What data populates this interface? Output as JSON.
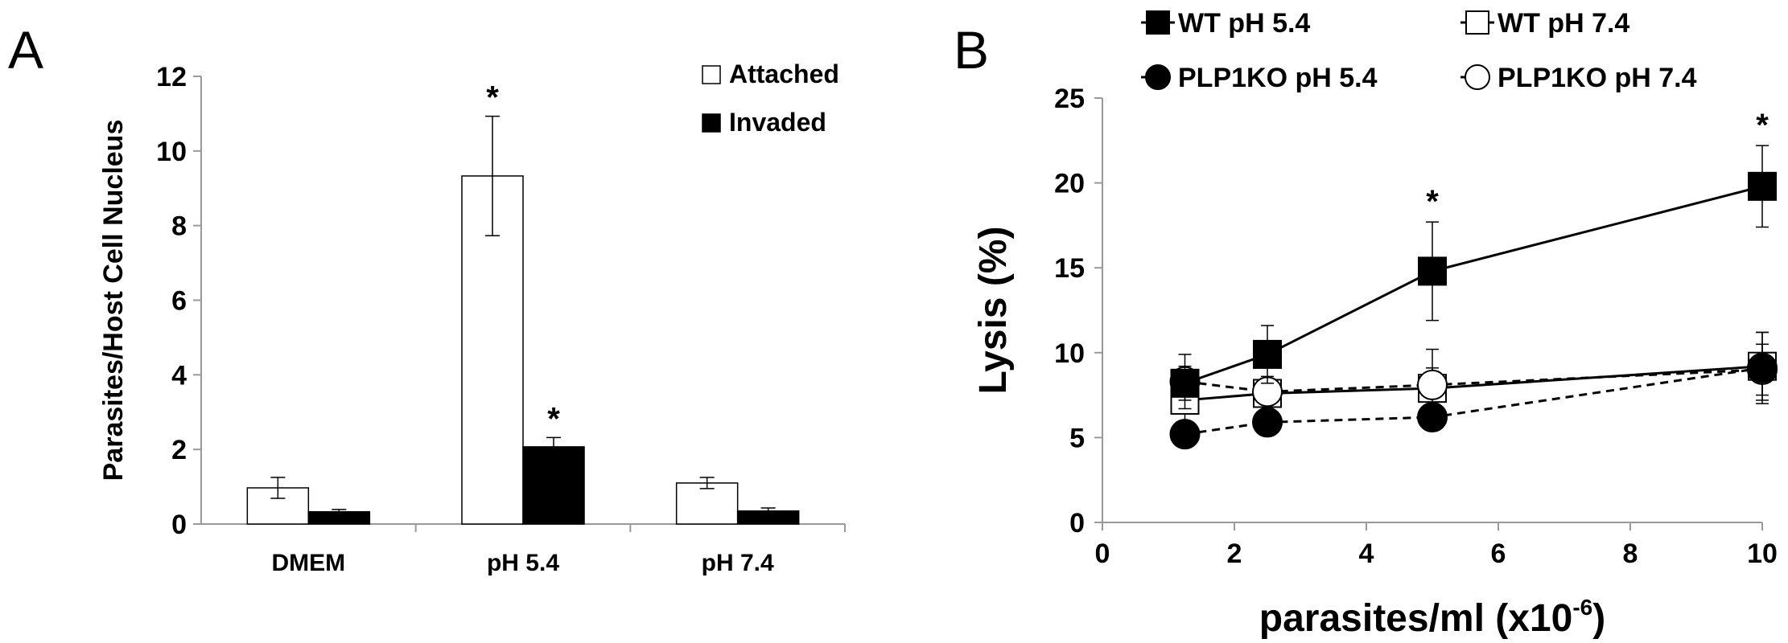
{
  "panel_a_letter": "A",
  "panel_b_letter": "B",
  "significance_marker": "*",
  "chart_data": [
    {
      "type": "bar",
      "panel": "A",
      "title": "",
      "xlabel": "",
      "ylabel": "Parasites/Host Cell Nucleus",
      "ylim": [
        0,
        12
      ],
      "yticks": [
        0,
        2,
        4,
        6,
        8,
        10,
        12
      ],
      "categories": [
        "DMEM",
        "pH 5.4",
        "pH 7.4"
      ],
      "legend_position": "top-right",
      "grid": false,
      "series": [
        {
          "name": "Attached",
          "fill": "#ffffff",
          "values": [
            0.97,
            9.33,
            1.1
          ],
          "errors": [
            0.28,
            1.6,
            0.15
          ],
          "significant": [
            false,
            true,
            false
          ]
        },
        {
          "name": "Invaded",
          "fill": "#000000",
          "values": [
            0.33,
            2.07,
            0.35
          ],
          "errors": [
            0.06,
            0.25,
            0.08
          ],
          "significant": [
            false,
            true,
            false
          ]
        }
      ]
    },
    {
      "type": "line",
      "panel": "B",
      "title": "",
      "xlabel": "parasites/ml (x10",
      "xlabel_sup": "-6",
      "xlabel_end": ")",
      "ylabel": "Lysis (%)",
      "xlim": [
        0,
        10
      ],
      "ylim": [
        0,
        25
      ],
      "xticks": [
        0,
        2,
        4,
        6,
        8,
        10
      ],
      "yticks": [
        0,
        5,
        10,
        15,
        20,
        25
      ],
      "x": [
        1.25,
        2.5,
        5,
        10
      ],
      "legend_position": "top",
      "grid": false,
      "series": [
        {
          "name": "WT pH 5.4",
          "marker": "square",
          "fill": "#000000",
          "dash": "solid",
          "values": [
            8.2,
            9.9,
            14.8,
            19.8
          ],
          "errors": [
            1.0,
            1.7,
            2.9,
            2.4
          ],
          "significant": [
            false,
            false,
            true,
            true
          ]
        },
        {
          "name": "WT pH 7.4",
          "marker": "square",
          "fill": "#ffffff",
          "dash": "solid",
          "values": [
            7.2,
            7.6,
            7.9,
            9.2
          ],
          "errors": [
            1.3,
            0.6,
            1.2,
            2.0
          ]
        },
        {
          "name": "PLP1KO pH 5.4",
          "marker": "circle",
          "fill": "#000000",
          "dash": "dashed",
          "values": [
            5.2,
            5.9,
            6.2,
            9.1
          ],
          "errors": [
            0.3,
            0.3,
            0.3,
            2.1
          ]
        },
        {
          "name": "PLP1KO pH 7.4",
          "marker": "circle",
          "fill": "#ffffff",
          "dash": "dashed",
          "values": [
            8.3,
            7.7,
            8.1,
            9.0
          ],
          "errors": [
            1.6,
            0.9,
            2.1,
            1.5
          ]
        }
      ]
    }
  ]
}
